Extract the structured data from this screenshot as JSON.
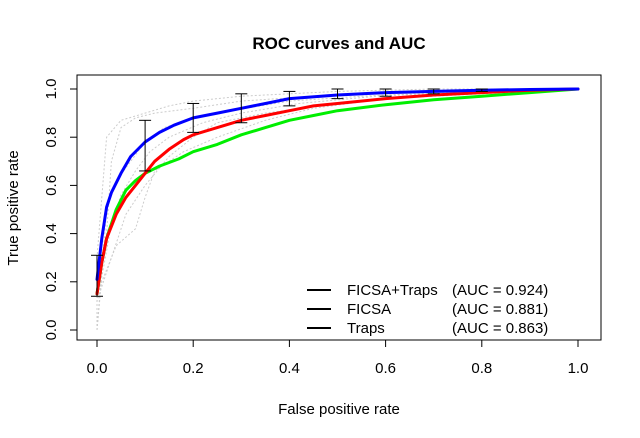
{
  "chart_data": {
    "type": "line",
    "title": "ROC curves and AUC",
    "xlabel": "False positive rate",
    "ylabel": "True positive rate",
    "xlim": [
      0,
      1
    ],
    "ylim": [
      0,
      1
    ],
    "x_ticks": [
      "0.0",
      "0.2",
      "0.4",
      "0.6",
      "0.8",
      "1.0"
    ],
    "y_ticks": [
      "0.0",
      "0.2",
      "0.4",
      "0.6",
      "0.8",
      "1.0"
    ],
    "grid": false,
    "legend_position": "bottom-right",
    "series": [
      {
        "name": "FICSA+Traps",
        "auc_label": "(AUC = 0.924)",
        "color": "#0000ff",
        "x": [
          0,
          0.01,
          0.02,
          0.03,
          0.05,
          0.07,
          0.1,
          0.13,
          0.16,
          0.2,
          0.25,
          0.3,
          0.35,
          0.4,
          0.5,
          0.6,
          0.7,
          0.8,
          0.9,
          1.0
        ],
        "y": [
          0.21,
          0.38,
          0.51,
          0.57,
          0.65,
          0.72,
          0.78,
          0.82,
          0.85,
          0.88,
          0.9,
          0.92,
          0.94,
          0.96,
          0.975,
          0.985,
          0.99,
          0.995,
          0.998,
          1.0
        ]
      },
      {
        "name": "FICSA",
        "auc_label": "(AUC = 0.881)",
        "color": "#ff0000",
        "x": [
          0,
          0.01,
          0.02,
          0.04,
          0.06,
          0.08,
          0.1,
          0.12,
          0.15,
          0.18,
          0.2,
          0.25,
          0.3,
          0.35,
          0.4,
          0.45,
          0.5,
          0.6,
          0.7,
          0.8,
          0.9,
          1.0
        ],
        "y": [
          0.15,
          0.28,
          0.38,
          0.48,
          0.55,
          0.6,
          0.65,
          0.7,
          0.75,
          0.79,
          0.81,
          0.84,
          0.87,
          0.89,
          0.91,
          0.93,
          0.94,
          0.96,
          0.975,
          0.985,
          0.995,
          1.0
        ]
      },
      {
        "name": "Traps",
        "auc_label": "(AUC = 0.863)",
        "color": "#00ee00",
        "x": [
          0,
          0.01,
          0.02,
          0.04,
          0.06,
          0.08,
          0.1,
          0.13,
          0.17,
          0.2,
          0.25,
          0.3,
          0.35,
          0.4,
          0.45,
          0.5,
          0.6,
          0.7,
          0.8,
          0.9,
          1.0
        ],
        "y": [
          0.15,
          0.28,
          0.38,
          0.5,
          0.58,
          0.62,
          0.65,
          0.68,
          0.71,
          0.74,
          0.77,
          0.81,
          0.84,
          0.87,
          0.89,
          0.91,
          0.935,
          0.955,
          0.97,
          0.985,
          1.0
        ]
      }
    ],
    "error_bars": {
      "color": "#000000",
      "x": [
        0,
        0.1,
        0.2,
        0.3,
        0.4,
        0.5,
        0.6,
        0.7,
        0.8
      ],
      "lo": [
        0.14,
        0.66,
        0.82,
        0.86,
        0.93,
        0.96,
        0.97,
        0.98,
        0.99
      ],
      "hi": [
        0.31,
        0.87,
        0.94,
        0.98,
        0.99,
        1.0,
        1.0,
        1.0,
        1.0
      ]
    },
    "background_curves": {
      "color": "#cccccc",
      "style": "dotted",
      "curves": [
        {
          "x": [
            0,
            0,
            0.01,
            0.02,
            0.05,
            0.1,
            0.15,
            0.2,
            0.3,
            0.4,
            0.5,
            0.7,
            1.0
          ],
          "y": [
            0,
            0.3,
            0.55,
            0.8,
            0.87,
            0.9,
            0.93,
            0.95,
            0.97,
            0.98,
            0.99,
            1.0,
            1.0
          ]
        },
        {
          "x": [
            0,
            0,
            0.02,
            0.03,
            0.05,
            0.08,
            0.12,
            0.2,
            0.3,
            0.45,
            0.6,
            0.8,
            1.0
          ],
          "y": [
            0,
            0.2,
            0.4,
            0.7,
            0.84,
            0.88,
            0.9,
            0.92,
            0.95,
            0.97,
            0.98,
            0.99,
            1.0
          ]
        },
        {
          "x": [
            0,
            0,
            0.03,
            0.06,
            0.1,
            0.15,
            0.2,
            0.25,
            0.35,
            0.5,
            0.65,
            0.85,
            1.0
          ],
          "y": [
            0,
            0.12,
            0.3,
            0.48,
            0.6,
            0.72,
            0.8,
            0.86,
            0.9,
            0.94,
            0.97,
            0.99,
            1.0
          ]
        },
        {
          "x": [
            0,
            0,
            0.04,
            0.08,
            0.1,
            0.12,
            0.18,
            0.25,
            0.35,
            0.45,
            0.6,
            0.8,
            1.0
          ],
          "y": [
            0,
            0.15,
            0.35,
            0.42,
            0.55,
            0.66,
            0.74,
            0.8,
            0.87,
            0.92,
            0.96,
            0.98,
            1.0
          ]
        },
        {
          "x": [
            0,
            0.01,
            0.02,
            0.04,
            0.07,
            0.1,
            0.14,
            0.2,
            0.28,
            0.4,
            0.55,
            0.75,
            1.0
          ],
          "y": [
            0,
            0.25,
            0.5,
            0.62,
            0.7,
            0.78,
            0.84,
            0.88,
            0.91,
            0.95,
            0.97,
            0.99,
            1.0
          ]
        },
        {
          "x": [
            0,
            0.01,
            0.03,
            0.05,
            0.08,
            0.11,
            0.15,
            0.22,
            0.3,
            0.42,
            0.58,
            0.78,
            1.0
          ],
          "y": [
            0,
            0.22,
            0.44,
            0.56,
            0.66,
            0.74,
            0.8,
            0.86,
            0.9,
            0.94,
            0.97,
            0.99,
            1.0
          ]
        }
      ]
    }
  }
}
